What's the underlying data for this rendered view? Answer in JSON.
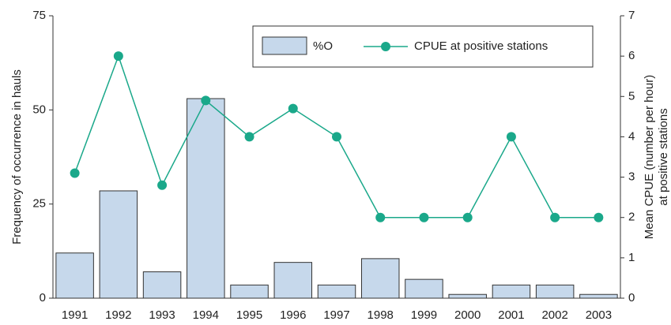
{
  "chart_data": {
    "type": "bar-line",
    "categories": [
      "1991",
      "1992",
      "1993",
      "1994",
      "1995",
      "1996",
      "1997",
      "1998",
      "1999",
      "2000",
      "2001",
      "2002",
      "2003"
    ],
    "series": [
      {
        "name": "%O",
        "kind": "bar",
        "color": "#c6d8eb",
        "values": [
          12,
          28.5,
          7,
          53,
          3.5,
          9.5,
          3.5,
          10.5,
          5,
          1,
          3.5,
          3.5,
          1
        ]
      },
      {
        "name": "CPUE at positive stations",
        "kind": "line",
        "axis": "y2",
        "color": "#1aa88a",
        "values": [
          3.1,
          6,
          2.8,
          4.9,
          4,
          4.7,
          4,
          2,
          2,
          2,
          4,
          2,
          2
        ]
      }
    ],
    "ylabel": "Frequency of occurrence in hauls",
    "y2label": [
      "Mean CPUE (number per hour)",
      "at positive stations"
    ],
    "ylim": [
      0,
      75
    ],
    "yticks": [
      0,
      25,
      50,
      75
    ],
    "y2lim": [
      0,
      7
    ],
    "y2ticks": [
      0,
      1,
      2,
      3,
      4,
      5,
      6,
      7
    ],
    "legend": "top-right"
  }
}
